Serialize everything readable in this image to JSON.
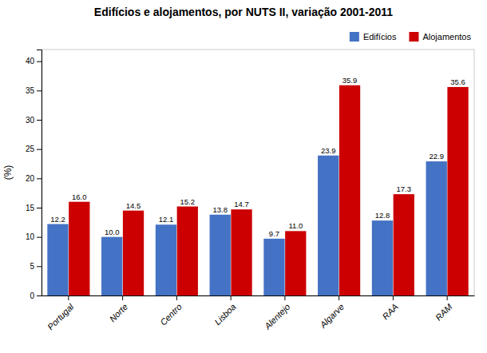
{
  "chart_data": {
    "type": "bar",
    "title": "Edifícios e alojamentos, por NUTS II, variação 2001-2011",
    "categories": [
      "Portugal",
      "Norte",
      "Centro",
      "Lisboa",
      "Alentejo",
      "Algarve",
      "RAA",
      "RAM"
    ],
    "series": [
      {
        "name": "Edifícios",
        "color": "#4472C4",
        "values": [
          12.2,
          10.0,
          12.1,
          13.8,
          9.7,
          23.9,
          12.8,
          22.9
        ],
        "value_labels": [
          "12.2",
          "10.0",
          "12.1",
          "13.8",
          "9.7",
          "23.9",
          "12.8",
          "22.9"
        ]
      },
      {
        "name": "Alojamentos",
        "color": "#CC0000",
        "values": [
          16.0,
          14.5,
          15.2,
          14.7,
          11.0,
          35.9,
          17.3,
          35.6
        ],
        "value_labels": [
          "16.0",
          "14.5",
          "15.2",
          "14.7",
          "11.0",
          "35.9",
          "17.3",
          "35.6"
        ]
      }
    ],
    "ylabel": "(%)",
    "ylim": [
      0,
      42
    ],
    "yticks": [
      0,
      5,
      10,
      15,
      20,
      25,
      30,
      35,
      40
    ],
    "grid": false,
    "legend": "upper right",
    "data_labels": true
  }
}
